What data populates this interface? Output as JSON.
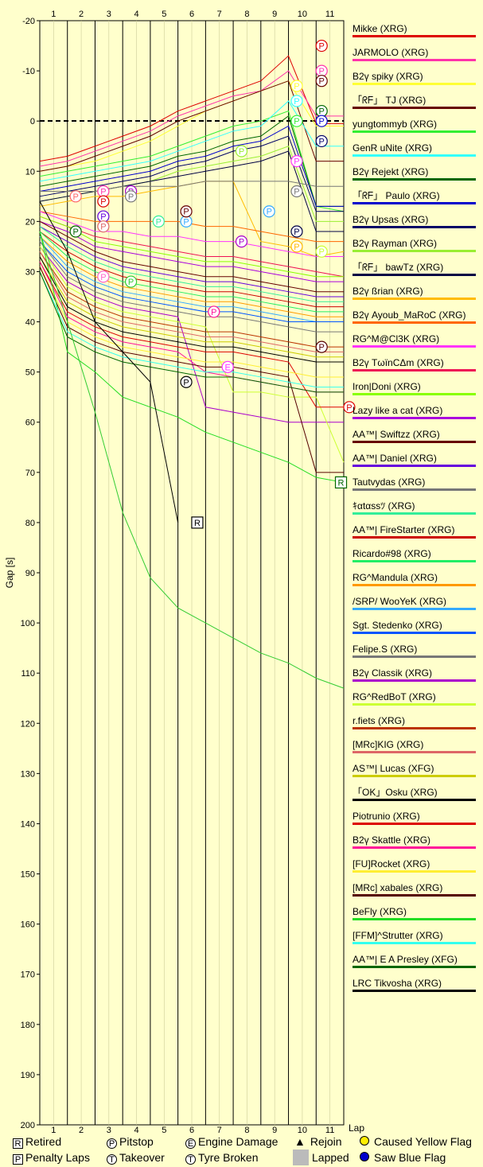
{
  "chart_data": {
    "type": "line",
    "ylabel": "Gap [s]",
    "xlabel": "Lap",
    "x_top_ticks": [
      "1",
      "2",
      "3",
      "4",
      "5",
      "6",
      "7",
      "8",
      "9",
      "10",
      "11"
    ],
    "y_ticks": [
      -20,
      -10,
      0,
      10,
      20,
      30,
      40,
      50,
      60,
      70,
      80,
      90,
      100,
      110,
      120,
      130,
      140,
      150,
      160,
      170,
      180,
      190,
      200
    ],
    "ylim": [
      -20,
      200
    ],
    "y_inverted": true,
    "laps": 11,
    "series": [
      {
        "name": "Mikke (XRG)",
        "color": "#dd0000",
        "values": [
          8,
          7,
          5,
          3,
          1,
          -2,
          -4,
          -6,
          -8,
          -13,
          0.5,
          0.5
        ]
      },
      {
        "name": "JARMOLO (XRG)",
        "color": "#ff33aa",
        "values": [
          9,
          8,
          6,
          4,
          2,
          -1,
          -3,
          -5,
          -6,
          -10,
          -1,
          -1
        ]
      },
      {
        "name": "B2ү spiky (XRG)",
        "color": "#ffff33",
        "values": [
          10,
          9,
          8,
          6,
          4,
          1,
          -2,
          -4,
          -6,
          -8,
          1,
          1
        ]
      },
      {
        "name": "「ᖇᖴ」 TJ (XRG)",
        "color": "#660000",
        "values": [
          10,
          9,
          7,
          5,
          3,
          0,
          -2,
          -4,
          -6,
          -8,
          8,
          8
        ]
      },
      {
        "name": "yungtommyb (XRG)",
        "color": "#33ee33",
        "values": [
          11,
          10,
          9,
          8,
          7,
          5,
          3,
          1,
          0,
          -2,
          17,
          18
        ]
      },
      {
        "name": "GenR uNite (XRG)",
        "color": "#33ffff",
        "values": [
          12,
          11,
          10,
          9,
          8,
          6,
          4,
          2,
          1,
          -4,
          5,
          5
        ]
      },
      {
        "name": "B2ү Rejekt (XRG)",
        "color": "#006600",
        "values": [
          13,
          12,
          11,
          10,
          9,
          7,
          6,
          4,
          3,
          -1,
          17,
          17
        ]
      },
      {
        "name": "「ᖇᖴ」 Paulo (XRG)",
        "color": "#0000cc",
        "values": [
          14,
          13,
          12,
          11,
          10,
          8,
          7,
          5,
          4,
          1,
          17,
          17
        ]
      },
      {
        "name": "B2ү Upsas (XRG)",
        "color": "#000066",
        "values": [
          15,
          14,
          13,
          12,
          11,
          9,
          8,
          6,
          5,
          3,
          18,
          18
        ]
      },
      {
        "name": "B2ү Rayman (XRG)",
        "color": "#99ee33",
        "values": [
          16,
          15,
          14,
          13,
          12,
          10,
          9,
          8,
          7,
          5,
          20,
          20
        ]
      },
      {
        "name": "「ᖇᖴ」 bawTz (XRG)",
        "color": "#000044",
        "values": [
          16,
          15,
          14,
          13,
          12,
          11,
          10,
          9,
          8,
          6,
          22,
          22
        ]
      },
      {
        "name": "B2ү ßrian (XRG)",
        "color": "#ffbb00",
        "values": [
          17,
          16,
          15,
          15,
          14,
          13,
          12,
          12,
          24,
          25,
          27,
          26
        ]
      },
      {
        "name": "B2ү Ayoub_MaRoC (XRG)",
        "color": "#ff6600",
        "values": [
          18,
          19,
          20,
          20,
          20,
          20,
          21,
          21,
          22,
          23,
          24,
          24
        ]
      },
      {
        "name": "RG^M@Cl3K (XRG)",
        "color": "#ff33ff",
        "values": [
          18,
          20,
          22,
          22,
          23,
          23,
          24,
          24,
          25,
          26,
          27,
          27
        ]
      },
      {
        "name": "B2ү TωïnCΔm (XRG)",
        "color": "#ee1155",
        "values": [
          19,
          21,
          23,
          24,
          25,
          26,
          27,
          27,
          28,
          29,
          30,
          31
        ]
      },
      {
        "name": "Iron|Doni (XRG)",
        "color": "#88ff00",
        "values": [
          19,
          21,
          24,
          25,
          26,
          27,
          28,
          28,
          29,
          30,
          31,
          31
        ]
      },
      {
        "name": "Lazy like a cat (XRG)",
        "color": "#aa00dd",
        "values": [
          20,
          22,
          25,
          26,
          27,
          28,
          29,
          29,
          30,
          31,
          32,
          32
        ]
      },
      {
        "name": "AA™| Swiftzz (XRG)",
        "color": "#660000",
        "values": [
          20,
          23,
          26,
          28,
          29,
          30,
          31,
          31,
          32,
          33,
          34,
          34
        ]
      },
      {
        "name": "AA™| Daniel (XRG)",
        "color": "#6600dd",
        "values": [
          21,
          24,
          27,
          29,
          30,
          31,
          32,
          32,
          33,
          34,
          35,
          35
        ]
      },
      {
        "name": "Tautvydas (XRG)",
        "color": "#777777",
        "values": [
          14,
          14,
          14,
          13,
          13,
          13,
          12,
          12,
          12,
          12,
          13,
          13
        ]
      },
      {
        "name": "ｷαtαsѕﾂ (XRG)",
        "color": "#33ee99",
        "values": [
          21,
          25,
          28,
          30,
          31,
          32,
          33,
          33,
          34,
          35,
          36,
          36
        ]
      },
      {
        "name": "AA™| FireStarter (XRG)",
        "color": "#cc0000",
        "values": [
          22,
          26,
          29,
          31,
          32,
          33,
          34,
          34,
          35,
          36,
          37,
          37
        ]
      },
      {
        "name": "Ricardo#98 (XRG)",
        "color": "#22ee66",
        "values": [
          22,
          27,
          30,
          32,
          33,
          34,
          35,
          35,
          36,
          37,
          38,
          38
        ]
      },
      {
        "name": "RG^Mandula (XRG)",
        "color": "#ff9900",
        "values": [
          23,
          28,
          31,
          33,
          34,
          35,
          36,
          36,
          37,
          38,
          39,
          39
        ]
      },
      {
        "name": "/SRP/ WooYeK (XRG)",
        "color": "#33aaff",
        "values": [
          23,
          29,
          32,
          34,
          35,
          36,
          37,
          37,
          38,
          39,
          40,
          40
        ]
      },
      {
        "name": "Sgt. Stedenko (XRG)",
        "color": "#0055ff",
        "values": [
          24,
          30,
          33,
          35,
          36,
          37,
          38,
          38,
          39,
          40,
          40,
          40
        ]
      },
      {
        "name": "Felipe.S (XRG)",
        "color": "#777777",
        "values": [
          24,
          31,
          34,
          36,
          37,
          38,
          39,
          39,
          40,
          41,
          42,
          42
        ]
      },
      {
        "name": "B2ү Classik (XRG)",
        "color": "#aa00cc",
        "values": [
          25,
          32,
          35,
          37,
          38,
          39,
          57,
          58,
          59,
          60,
          60,
          60
        ]
      },
      {
        "name": "RG^RedBoT (XRG)",
        "color": "#ccff33",
        "values": [
          25,
          33,
          36,
          38,
          39,
          40,
          41,
          54,
          54,
          55,
          55,
          68
        ]
      },
      {
        "name": "r.fiets (XRG)",
        "color": "#bb3300",
        "values": [
          26,
          34,
          37,
          39,
          40,
          41,
          42,
          42,
          43,
          44,
          45,
          45
        ]
      },
      {
        "name": "[MRc]KIG (XRG)",
        "color": "#dd6666",
        "values": [
          26,
          35,
          38,
          40,
          41,
          42,
          43,
          43,
          44,
          45,
          46,
          46
        ]
      },
      {
        "name": "AS™| Lucas (XFG)",
        "color": "#cccc00",
        "values": [
          27,
          36,
          39,
          41,
          42,
          43,
          44,
          44,
          45,
          46,
          47,
          47
        ]
      },
      {
        "name": "「OK」Osku (XRG)",
        "color": "#000000",
        "values": [
          27,
          37,
          40,
          42,
          43,
          44,
          45,
          45,
          46,
          47,
          48,
          48
        ]
      },
      {
        "name": "Piotrunio (XRG)",
        "color": "#dd0000",
        "values": [
          28,
          38,
          41,
          43,
          44,
          45,
          46,
          46,
          47,
          48,
          57,
          57
        ]
      },
      {
        "name": "B2ү Skattle (XRG)",
        "color": "#ff1199",
        "values": [
          28,
          39,
          42,
          44,
          45,
          46,
          50,
          51,
          52,
          53,
          54,
          54
        ]
      },
      {
        "name": "[FU]Rocket (XRG)",
        "color": "#ffee33",
        "values": [
          29,
          40,
          43,
          45,
          46,
          47,
          48,
          48,
          49,
          50,
          51,
          51
        ]
      },
      {
        "name": "[MRc] xabales (XRG)",
        "color": "#550000",
        "values": [
          29,
          41,
          44,
          46,
          47,
          48,
          49,
          49,
          50,
          51,
          70,
          70
        ]
      },
      {
        "name": "BeFly (XRG)",
        "color": "#22dd22",
        "values": [
          22,
          46,
          50,
          55,
          57,
          59,
          62,
          64,
          66,
          68,
          71,
          72
        ]
      },
      {
        "name": "[FFM]^Strutter (XRG)",
        "color": "#33ffee",
        "values": [
          30,
          42,
          45,
          47,
          48,
          49,
          50,
          50,
          51,
          52,
          53,
          53
        ]
      },
      {
        "name": "AA™| E A Presley (XFG)",
        "color": "#006600",
        "values": [
          30,
          43,
          46,
          48,
          49,
          50,
          51,
          51,
          52,
          53,
          54,
          54
        ]
      },
      {
        "name": "LRC Tikvosha (XRG)",
        "color": "#000000",
        "values": [
          16,
          26,
          40,
          46,
          52,
          80
        ]
      },
      {
        "name": "",
        "color": "#33cc33",
        "values": [
          22,
          40,
          58,
          78,
          91,
          97,
          100,
          103,
          106,
          108,
          111,
          113
        ]
      }
    ],
    "markers": [
      {
        "label": "P",
        "lap": 10.2,
        "gap": -15,
        "color": "#dd0000"
      },
      {
        "label": "P",
        "lap": 10.2,
        "gap": -10,
        "color": "#ff33aa"
      },
      {
        "label": "P",
        "lap": 10.2,
        "gap": -8,
        "color": "#660000"
      },
      {
        "label": "P",
        "lap": 9.3,
        "gap": -7,
        "color": "#ffff33"
      },
      {
        "label": "P",
        "lap": 9.3,
        "gap": -4,
        "color": "#33ffff"
      },
      {
        "label": "P",
        "lap": 10.2,
        "gap": -2,
        "color": "#006600"
      },
      {
        "label": "P",
        "lap": 9.3,
        "gap": 0,
        "color": "#33ee33"
      },
      {
        "label": "P",
        "lap": 10.2,
        "gap": 0,
        "color": "#0000cc"
      },
      {
        "label": "P",
        "lap": 10.2,
        "gap": 4,
        "color": "#000066"
      },
      {
        "label": "P",
        "lap": 7.3,
        "gap": 6,
        "color": "#99ee33"
      },
      {
        "label": "P",
        "lap": 9.3,
        "gap": 8,
        "color": "#ff33ff"
      },
      {
        "label": "P",
        "lap": 9.3,
        "gap": 14,
        "color": "#777777"
      },
      {
        "label": "P",
        "lap": 8.3,
        "gap": 18,
        "color": "#33aaff"
      },
      {
        "label": "P",
        "lap": 9.3,
        "gap": 22,
        "color": "#000044"
      },
      {
        "label": "P",
        "lap": 9.3,
        "gap": 25,
        "color": "#ffbb00"
      },
      {
        "label": "P",
        "lap": 10.2,
        "gap": 26,
        "color": "#ccff33"
      },
      {
        "label": "P",
        "lap": 7.3,
        "gap": 24,
        "color": "#aa00cc"
      },
      {
        "label": "P",
        "lap": 2.3,
        "gap": 14,
        "color": "#ff33aa"
      },
      {
        "label": "P",
        "lap": 2.3,
        "gap": 16,
        "color": "#dd0000"
      },
      {
        "label": "P",
        "lap": 2.3,
        "gap": 19,
        "color": "#6600dd"
      },
      {
        "label": "P",
        "lap": 2.3,
        "gap": 21,
        "color": "#dd6666"
      },
      {
        "label": "P",
        "lap": 3.3,
        "gap": 14,
        "color": "#aa00cc"
      },
      {
        "label": "P",
        "lap": 3.3,
        "gap": 15,
        "color": "#777777"
      },
      {
        "label": "P",
        "lap": 1.3,
        "gap": 15,
        "color": "#ff6666"
      },
      {
        "label": "P",
        "lap": 2.3,
        "gap": 31,
        "color": "#ff66cc"
      },
      {
        "label": "P",
        "lap": 1.3,
        "gap": 22,
        "color": "#006600"
      },
      {
        "label": "P",
        "lap": 3.3,
        "gap": 32,
        "color": "#33cc33"
      },
      {
        "label": "P",
        "lap": 4.3,
        "gap": 20,
        "color": "#33ee99"
      },
      {
        "label": "P",
        "lap": 5.3,
        "gap": 20,
        "color": "#33aaff"
      },
      {
        "label": "P",
        "lap": 5.3,
        "gap": 18,
        "color": "#660000"
      },
      {
        "label": "P",
        "lap": 5.3,
        "gap": 52,
        "color": "#000000"
      },
      {
        "label": "P",
        "lap": 6.3,
        "gap": 38,
        "color": "#ff1199"
      },
      {
        "label": "P",
        "lap": 10.2,
        "gap": 45,
        "color": "#550000"
      },
      {
        "label": "P",
        "lap": 11.2,
        "gap": 57,
        "color": "#dd0000"
      },
      {
        "label": "E",
        "lap": 6.8,
        "gap": 49,
        "color": "#ff33ff"
      },
      {
        "label": "R",
        "lap": 5.7,
        "gap": 80,
        "color": "#000000"
      },
      {
        "label": "R",
        "lap": 10.9,
        "gap": 72,
        "color": "#006600"
      }
    ]
  },
  "legend_bottom": {
    "retired": "Retired",
    "penalty": "Penalty Laps",
    "pitstop": "Pitstop",
    "takeover": "Takeover",
    "engine": "Engine Damage",
    "tyre": "Tyre Broken",
    "rejoin": "Rejoin",
    "lapped": "Lapped",
    "yellow": "Caused Yellow Flag",
    "blue": "Saw Blue Flag",
    "sym_R": "R",
    "sym_P": "P",
    "sym_T": "T",
    "sym_E": "E"
  }
}
